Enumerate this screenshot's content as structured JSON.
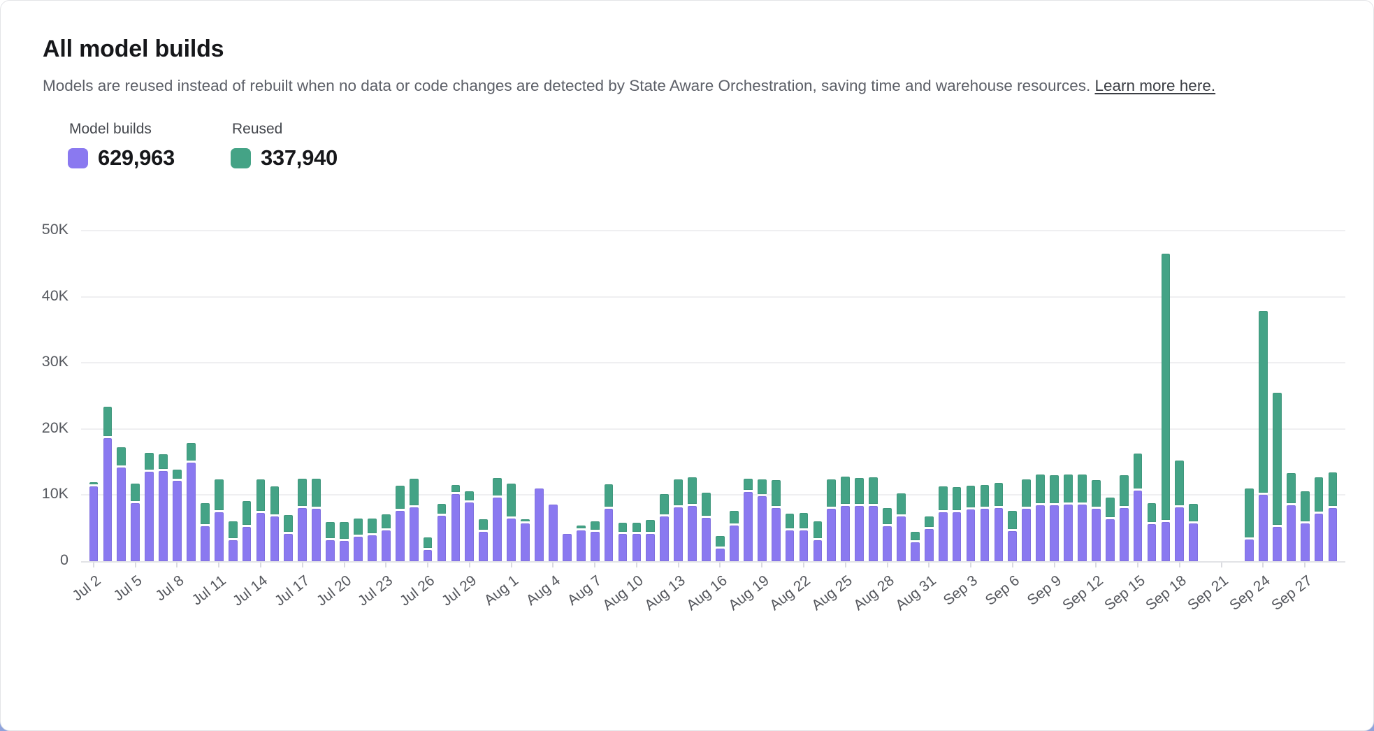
{
  "card": {
    "title": "All model builds",
    "description": "Models are reused instead of rebuilt when no data or code changes are detected by State Aware Orchestration, saving time and warehouse resources.",
    "link_text": "Learn more here."
  },
  "legend": {
    "groups": [
      {
        "label": "Model builds",
        "value": "629,963",
        "color": "#8A79F0"
      },
      {
        "label": "Reused",
        "value": "337,940",
        "color": "#44A386"
      }
    ]
  },
  "chart_data": {
    "type": "bar",
    "stacked": true,
    "title": "All model builds",
    "xlabel": "",
    "ylabel": "",
    "ylim": [
      0,
      50000
    ],
    "yticks": [
      "0",
      "10K",
      "20K",
      "30K",
      "40K",
      "50K"
    ],
    "grid": true,
    "legend_position": "top-left",
    "x_tick_interval_days": 3,
    "series": [
      {
        "name": "Model builds",
        "color": "#8A79F0",
        "total": 629963
      },
      {
        "name": "Reused",
        "color": "#44A386",
        "total": 337940
      }
    ],
    "days": [
      {
        "date": "Jul 2",
        "builds": 11300,
        "reused": 300
      },
      {
        "date": "Jul 3",
        "builds": 18600,
        "reused": 4400
      },
      {
        "date": "Jul 4",
        "builds": 14200,
        "reused": 2700
      },
      {
        "date": "Jul 5",
        "builds": 8800,
        "reused": 2600
      },
      {
        "date": "Jul 6",
        "builds": 13500,
        "reused": 2600
      },
      {
        "date": "Jul 7",
        "builds": 13600,
        "reused": 2300
      },
      {
        "date": "Jul 8",
        "builds": 12200,
        "reused": 1300
      },
      {
        "date": "Jul 9",
        "builds": 14900,
        "reused": 2600
      },
      {
        "date": "Jul 10",
        "builds": 5300,
        "reused": 3200
      },
      {
        "date": "Jul 11",
        "builds": 7400,
        "reused": 4600
      },
      {
        "date": "Jul 12",
        "builds": 3200,
        "reused": 2500
      },
      {
        "date": "Jul 13",
        "builds": 5200,
        "reused": 3600
      },
      {
        "date": "Jul 14",
        "builds": 7300,
        "reused": 4800
      },
      {
        "date": "Jul 15",
        "builds": 6800,
        "reused": 4200
      },
      {
        "date": "Jul 16",
        "builds": 4100,
        "reused": 2600
      },
      {
        "date": "Jul 17",
        "builds": 8000,
        "reused": 4200
      },
      {
        "date": "Jul 18",
        "builds": 7900,
        "reused": 4300
      },
      {
        "date": "Jul 19",
        "builds": 3200,
        "reused": 2400
      },
      {
        "date": "Jul 20",
        "builds": 3100,
        "reused": 2500
      },
      {
        "date": "Jul 21",
        "builds": 3700,
        "reused": 2400
      },
      {
        "date": "Jul 22",
        "builds": 3900,
        "reused": 2200
      },
      {
        "date": "Jul 23",
        "builds": 4700,
        "reused": 2100
      },
      {
        "date": "Jul 24",
        "builds": 7600,
        "reused": 3500
      },
      {
        "date": "Jul 25",
        "builds": 8100,
        "reused": 4100
      },
      {
        "date": "Jul 26",
        "builds": 1700,
        "reused": 1600
      },
      {
        "date": "Jul 27",
        "builds": 6900,
        "reused": 1500
      },
      {
        "date": "Jul 28",
        "builds": 10200,
        "reused": 1000
      },
      {
        "date": "Jul 29",
        "builds": 8900,
        "reused": 1400
      },
      {
        "date": "Jul 30",
        "builds": 4400,
        "reused": 1600
      },
      {
        "date": "Jul 31",
        "builds": 9600,
        "reused": 2700
      },
      {
        "date": "Aug 1",
        "builds": 6400,
        "reused": 5000
      },
      {
        "date": "Aug 2",
        "builds": 5700,
        "reused": 300
      },
      {
        "date": "Aug 3",
        "builds": 11000,
        "reused": 0
      },
      {
        "date": "Aug 4",
        "builds": 8600,
        "reused": 0
      },
      {
        "date": "Aug 5",
        "builds": 4100,
        "reused": 0
      },
      {
        "date": "Aug 6",
        "builds": 4700,
        "reused": 400
      },
      {
        "date": "Aug 7",
        "builds": 4400,
        "reused": 1300
      },
      {
        "date": "Aug 8",
        "builds": 7900,
        "reused": 3400
      },
      {
        "date": "Aug 9",
        "builds": 4100,
        "reused": 1400
      },
      {
        "date": "Aug 10",
        "builds": 4100,
        "reused": 1400
      },
      {
        "date": "Aug 11",
        "builds": 4100,
        "reused": 1800
      },
      {
        "date": "Aug 12",
        "builds": 6800,
        "reused": 3000
      },
      {
        "date": "Aug 13",
        "builds": 8100,
        "reused": 4000
      },
      {
        "date": "Aug 14",
        "builds": 8300,
        "reused": 4100
      },
      {
        "date": "Aug 15",
        "builds": 6600,
        "reused": 3400
      },
      {
        "date": "Aug 16",
        "builds": 1900,
        "reused": 1600
      },
      {
        "date": "Aug 17",
        "builds": 5400,
        "reused": 1900
      },
      {
        "date": "Aug 18",
        "builds": 10500,
        "reused": 1700
      },
      {
        "date": "Aug 19",
        "builds": 9800,
        "reused": 2300
      },
      {
        "date": "Aug 20",
        "builds": 8000,
        "reused": 3900
      },
      {
        "date": "Aug 21",
        "builds": 4700,
        "reused": 2200
      },
      {
        "date": "Aug 22",
        "builds": 4700,
        "reused": 2300
      },
      {
        "date": "Aug 23",
        "builds": 3200,
        "reused": 2500
      },
      {
        "date": "Aug 24",
        "builds": 7900,
        "reused": 4200
      },
      {
        "date": "Aug 25",
        "builds": 8300,
        "reused": 4200
      },
      {
        "date": "Aug 26",
        "builds": 8400,
        "reused": 3900
      },
      {
        "date": "Aug 27",
        "builds": 8400,
        "reused": 4000
      },
      {
        "date": "Aug 28",
        "builds": 5300,
        "reused": 2400
      },
      {
        "date": "Aug 29",
        "builds": 6800,
        "reused": 3100
      },
      {
        "date": "Aug 30",
        "builds": 2900,
        "reused": 1200
      },
      {
        "date": "Aug 31",
        "builds": 4900,
        "reused": 1600
      },
      {
        "date": "Sep 1",
        "builds": 7400,
        "reused": 3600
      },
      {
        "date": "Sep 2",
        "builds": 7400,
        "reused": 3500
      },
      {
        "date": "Sep 3",
        "builds": 7800,
        "reused": 3300
      },
      {
        "date": "Sep 4",
        "builds": 7900,
        "reused": 3300
      },
      {
        "date": "Sep 5",
        "builds": 8000,
        "reused": 3500
      },
      {
        "date": "Sep 6",
        "builds": 4500,
        "reused": 2800
      },
      {
        "date": "Sep 7",
        "builds": 7900,
        "reused": 4200
      },
      {
        "date": "Sep 8",
        "builds": 8500,
        "reused": 4300
      },
      {
        "date": "Sep 9",
        "builds": 8500,
        "reused": 4200
      },
      {
        "date": "Sep 10",
        "builds": 8600,
        "reused": 4200
      },
      {
        "date": "Sep 11",
        "builds": 8600,
        "reused": 4200
      },
      {
        "date": "Sep 12",
        "builds": 7900,
        "reused": 4000
      },
      {
        "date": "Sep 13",
        "builds": 6300,
        "reused": 3000
      },
      {
        "date": "Sep 14",
        "builds": 8000,
        "reused": 4700
      },
      {
        "date": "Sep 15",
        "builds": 10700,
        "reused": 5300
      },
      {
        "date": "Sep 16",
        "builds": 5600,
        "reused": 2900
      },
      {
        "date": "Sep 17",
        "builds": 5900,
        "reused": 40300
      },
      {
        "date": "Sep 18",
        "builds": 8100,
        "reused": 6800
      },
      {
        "date": "Sep 19",
        "builds": 5700,
        "reused": 2700
      },
      {
        "date": "Sep 20",
        "builds": 0,
        "reused": 0
      },
      {
        "date": "Sep 21",
        "builds": 0,
        "reused": 0
      },
      {
        "date": "Sep 22",
        "builds": 0,
        "reused": 0
      },
      {
        "date": "Sep 23",
        "builds": 3300,
        "reused": 7400
      },
      {
        "date": "Sep 24",
        "builds": 10000,
        "reused": 27500
      },
      {
        "date": "Sep 25",
        "builds": 5200,
        "reused": 20000
      },
      {
        "date": "Sep 26",
        "builds": 8500,
        "reused": 4500
      },
      {
        "date": "Sep 27",
        "builds": 5700,
        "reused": 4600
      },
      {
        "date": "Sep 28",
        "builds": 7200,
        "reused": 5200
      },
      {
        "date": "Sep 29",
        "builds": 8000,
        "reused": 5100
      }
    ]
  }
}
